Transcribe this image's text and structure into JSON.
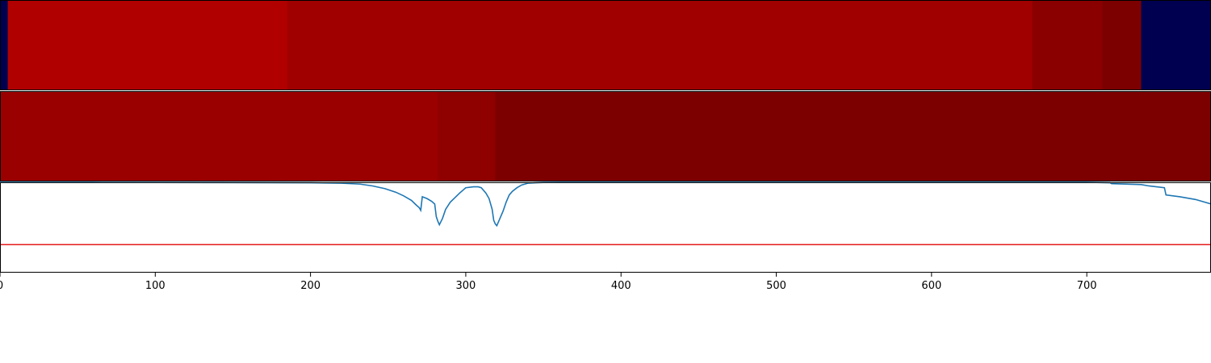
{
  "chart_data": [
    {
      "type": "heatmap",
      "xlim": [
        0,
        780
      ],
      "grid": false,
      "segments": [
        {
          "start": 0,
          "end": 5,
          "color": "#000050"
        },
        {
          "start": 5,
          "end": 185,
          "color": "#b00000"
        },
        {
          "start": 185,
          "end": 665,
          "color": "#a00000"
        },
        {
          "start": 665,
          "end": 710,
          "color": "#8a0000"
        },
        {
          "start": 710,
          "end": 735,
          "color": "#7c0000"
        },
        {
          "start": 735,
          "end": 780,
          "color": "#000050"
        }
      ]
    },
    {
      "type": "heatmap",
      "xlim": [
        0,
        780
      ],
      "grid": false,
      "segments": [
        {
          "start": 0,
          "end": 282,
          "color": "#9b0000"
        },
        {
          "start": 282,
          "end": 319,
          "color": "#8f0000"
        },
        {
          "start": 319,
          "end": 780,
          "color": "#7d0000"
        }
      ]
    },
    {
      "type": "line",
      "xlim": [
        0,
        780
      ],
      "ylim": [
        0,
        1
      ],
      "grid": false,
      "x_ticks": [
        0,
        100,
        200,
        300,
        400,
        500,
        600,
        700
      ],
      "x_tick_labels": [
        "0",
        "100",
        "200",
        "300",
        "400",
        "500",
        "600",
        "700"
      ],
      "threshold": {
        "y": 0.31,
        "color": "#e41a1c"
      },
      "series": [
        {
          "color": "#1f77b4",
          "x": [
            0,
            60,
            140,
            200,
            220,
            232,
            240,
            248,
            255,
            260,
            265,
            268,
            270,
            271,
            272,
            275,
            278,
            280,
            281,
            282,
            283,
            285,
            287,
            290,
            293,
            296,
            300,
            305,
            308,
            310,
            313,
            315,
            317,
            318,
            319,
            320,
            322,
            324,
            326,
            328,
            330,
            333,
            336,
            340,
            345,
            350,
            360,
            380,
            420,
            500,
            600,
            700,
            715,
            716,
            735,
            740,
            745,
            750,
            751,
            760,
            770,
            780
          ],
          "y": [
            1.0,
            0.999,
            0.997,
            0.995,
            0.99,
            0.98,
            0.96,
            0.93,
            0.89,
            0.85,
            0.8,
            0.75,
            0.72,
            0.69,
            0.84,
            0.82,
            0.79,
            0.76,
            0.62,
            0.57,
            0.53,
            0.6,
            0.7,
            0.78,
            0.83,
            0.88,
            0.94,
            0.95,
            0.95,
            0.94,
            0.88,
            0.82,
            0.7,
            0.58,
            0.54,
            0.52,
            0.6,
            0.68,
            0.78,
            0.86,
            0.9,
            0.94,
            0.97,
            0.99,
            0.995,
            0.998,
            1.0,
            1.0,
            1.0,
            1.0,
            1.0,
            1.0,
            0.995,
            0.985,
            0.975,
            0.96,
            0.95,
            0.94,
            0.86,
            0.84,
            0.81,
            0.76
          ]
        }
      ]
    }
  ]
}
